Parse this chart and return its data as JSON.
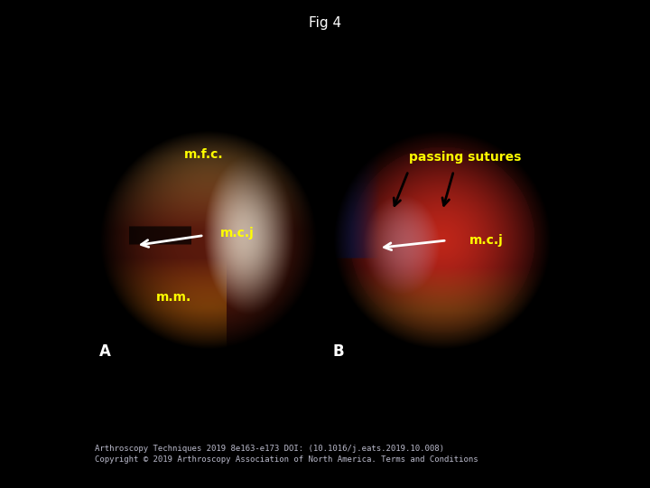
{
  "title": "Fig 4",
  "title_color": "#ffffff",
  "title_fontsize": 11,
  "bg_color": "#000000",
  "caption_line1": "Arthroscopy Techniques 2019 8e163-e173 DOI: (10.1016/j.eats.2019.10.008)",
  "caption_line2": "Copyright © 2019 Arthroscopy Association of North America. Terms and Conditions",
  "caption_fontsize": 6.5,
  "caption_color": "#bbbbcc",
  "panel_left_label": "A",
  "panel_right_label": "B",
  "label_color": "#ffffff",
  "label_fontsize": 12,
  "yellow": "#ffff00",
  "white": "#ffffff",
  "black": "#000000",
  "ann_fontsize": 10
}
